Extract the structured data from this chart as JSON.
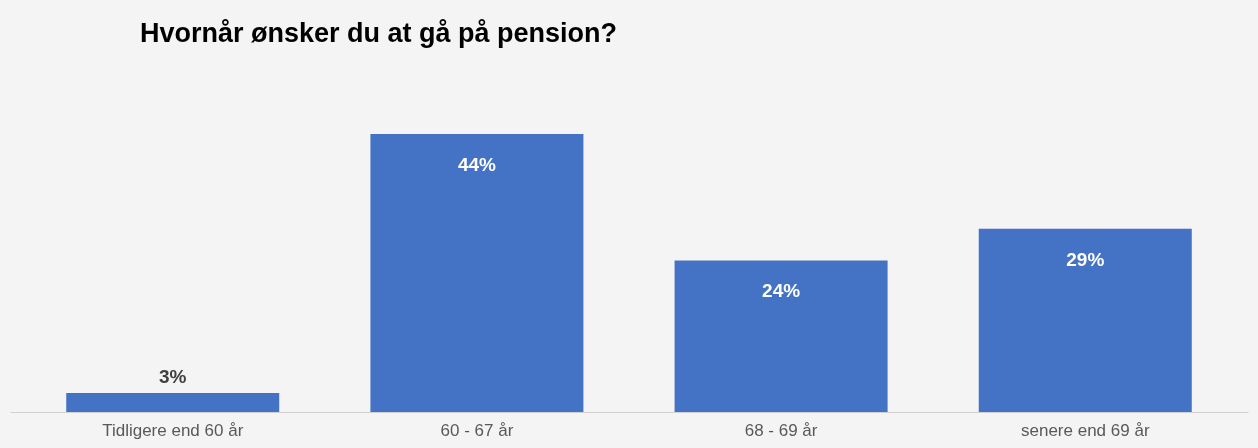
{
  "chart_data": {
    "type": "bar",
    "title": "Hvornår ønsker du at gå på pension?",
    "categories": [
      "Tidligere end 60 år",
      "60 - 67 år",
      "68 - 69 år",
      "senere end 69 år"
    ],
    "values": [
      3,
      44,
      24,
      29
    ],
    "value_labels": [
      "3%",
      "44%",
      "24%",
      "29%"
    ],
    "color": "#4472c4"
  }
}
